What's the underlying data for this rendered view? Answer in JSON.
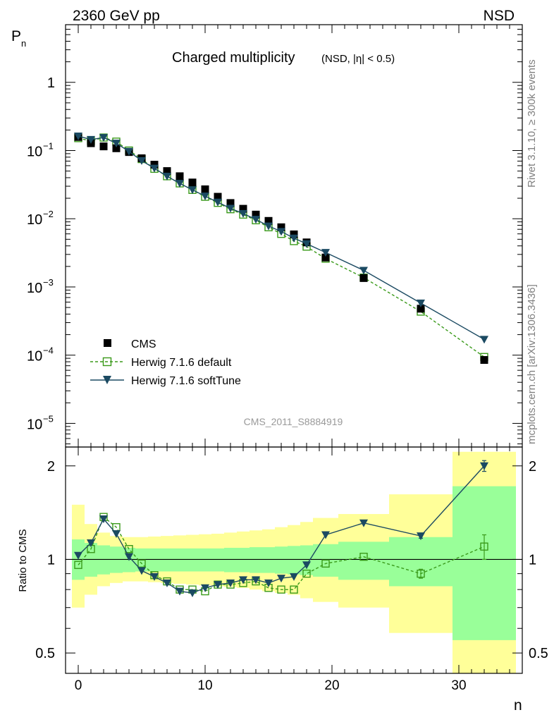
{
  "header": {
    "energy_label": "2360 GeV pp",
    "process_label": "NSD"
  },
  "side": {
    "rivet": "Rivet 3.1.10, ≥ 300k events",
    "mcplots": "mcplots.cern.ch [arXiv:1306.3436]"
  },
  "colors": {
    "cms": "#000000",
    "default": "#3a9a1a",
    "softtune": "#1b4a62",
    "band_inner": "#99ff99",
    "band_outer": "#ffff99",
    "ref_line": "#000000"
  },
  "chart_data": [
    {
      "type": "scatter",
      "title": "Charged multiplicity",
      "subtitle": "(NSD, |η| < 0.5)",
      "ylabel": "P",
      "ylabel_sub": "n",
      "xlabel": "n",
      "yscale": "log",
      "xlim": [
        -1,
        35
      ],
      "ylim": [
        4.5e-06,
        7
      ],
      "y_ticks": [
        {
          "value": 1,
          "base": "1",
          "exp": ""
        },
        {
          "value": 0.1,
          "base": "10",
          "exp": "−1"
        },
        {
          "value": 0.01,
          "base": "10",
          "exp": "−2"
        },
        {
          "value": 0.001,
          "base": "10",
          "exp": "−3"
        },
        {
          "value": 0.0001,
          "base": "10",
          "exp": "−4"
        },
        {
          "value": 1e-05,
          "base": "10",
          "exp": "−5"
        }
      ],
      "watermark": "CMS_2011_S8884919",
      "legend": {
        "placement": "bottom-left",
        "entries": [
          "CMS",
          "Herwig 7.1.6 default",
          "Herwig 7.1.6 softTune"
        ]
      },
      "series": [
        {
          "name": "CMS",
          "marker": "filled-square",
          "x": [
            0,
            1,
            2,
            3,
            4,
            5,
            6,
            7,
            8,
            9,
            10,
            11,
            12,
            13,
            14,
            15,
            16,
            17,
            18,
            19.5,
            22.5,
            27,
            32
          ],
          "y": [
            0.158,
            0.128,
            0.115,
            0.108,
            0.095,
            0.077,
            0.062,
            0.05,
            0.042,
            0.034,
            0.027,
            0.021,
            0.017,
            0.014,
            0.0115,
            0.0093,
            0.0075,
            0.0059,
            0.0045,
            0.0027,
            0.00135,
            0.00048,
            8.5e-05
          ]
        },
        {
          "name": "Herwig 7.1.6 default",
          "marker": "open-square",
          "line": "dashed",
          "x": [
            0,
            1,
            2,
            3,
            4,
            5,
            6,
            7,
            8,
            9,
            10,
            11,
            12,
            13,
            14,
            15,
            16,
            17,
            18,
            19.5,
            22.5,
            27,
            32
          ],
          "y": [
            0.152,
            0.138,
            0.155,
            0.135,
            0.1,
            0.075,
            0.054,
            0.042,
            0.033,
            0.0265,
            0.021,
            0.0171,
            0.0138,
            0.0115,
            0.0095,
            0.0075,
            0.006,
            0.0047,
            0.0039,
            0.0026,
            0.00137,
            0.000435,
            9.4e-05
          ]
        },
        {
          "name": "Herwig 7.1.6 softTune",
          "marker": "filled-triangle-down",
          "line": "solid",
          "x": [
            0,
            1,
            2,
            3,
            4,
            5,
            6,
            7,
            8,
            9,
            10,
            11,
            12,
            13,
            14,
            15,
            16,
            17,
            18,
            19.5,
            22.5,
            27,
            32
          ],
          "y": [
            0.163,
            0.145,
            0.155,
            0.128,
            0.097,
            0.071,
            0.055,
            0.042,
            0.033,
            0.0265,
            0.0215,
            0.0175,
            0.0142,
            0.0119,
            0.0098,
            0.0078,
            0.0065,
            0.0052,
            0.0043,
            0.0032,
            0.00175,
            0.00058,
            0.00017
          ]
        }
      ]
    },
    {
      "type": "scatter",
      "ylabel": "Ratio to CMS",
      "xlabel": "n",
      "xlim": [
        -1,
        35
      ],
      "ylim": [
        0.43,
        2.3
      ],
      "y_ticks": [
        0.5,
        1,
        2
      ],
      "y_tick_labels": [
        "0.5",
        "1",
        "2"
      ],
      "x_ticks": [
        0,
        10,
        20,
        30
      ],
      "x_tick_labels": [
        "0",
        "10",
        "20",
        "30"
      ],
      "reference": 1,
      "bands": {
        "edges": [
          -0.5,
          0.5,
          1.5,
          2.5,
          3.5,
          4.5,
          5.5,
          6.5,
          7.5,
          8.5,
          9.5,
          10.5,
          11.5,
          12.5,
          13.5,
          14.5,
          15.5,
          16.5,
          17.5,
          18.5,
          20.5,
          24.5,
          29.5,
          34.5
        ],
        "inner_low": [
          0.86,
          0.88,
          0.895,
          0.905,
          0.91,
          0.915,
          0.915,
          0.915,
          0.915,
          0.915,
          0.915,
          0.915,
          0.91,
          0.91,
          0.905,
          0.905,
          0.9,
          0.895,
          0.89,
          0.88,
          0.86,
          0.82,
          0.55
        ],
        "inner_high": [
          1.16,
          1.13,
          1.11,
          1.1,
          1.09,
          1.085,
          1.085,
          1.085,
          1.085,
          1.085,
          1.085,
          1.085,
          1.09,
          1.09,
          1.095,
          1.095,
          1.1,
          1.105,
          1.11,
          1.12,
          1.14,
          1.18,
          1.72
        ],
        "outer_low": [
          0.7,
          0.77,
          0.82,
          0.84,
          0.85,
          0.85,
          0.845,
          0.84,
          0.835,
          0.83,
          0.825,
          0.82,
          0.815,
          0.81,
          0.8,
          0.79,
          0.78,
          0.77,
          0.75,
          0.73,
          0.7,
          0.58,
          0.3
        ],
        "outer_high": [
          1.5,
          1.3,
          1.22,
          1.19,
          1.18,
          1.18,
          1.185,
          1.19,
          1.195,
          1.2,
          1.205,
          1.21,
          1.22,
          1.23,
          1.24,
          1.25,
          1.27,
          1.29,
          1.32,
          1.36,
          1.4,
          1.62,
          2.22
        ]
      },
      "series": [
        {
          "name": "Herwig 7.1.6 default",
          "marker": "open-square",
          "line": "dashed",
          "x": [
            0,
            1,
            2,
            3,
            4,
            5,
            6,
            7,
            8,
            9,
            10,
            11,
            12,
            13,
            14,
            15,
            16,
            17,
            18,
            19.5,
            22.5,
            27,
            32
          ],
          "y": [
            0.96,
            1.08,
            1.37,
            1.27,
            1.08,
            0.97,
            0.89,
            0.85,
            0.8,
            0.8,
            0.79,
            0.83,
            0.83,
            0.84,
            0.85,
            0.81,
            0.8,
            0.8,
            0.9,
            0.97,
            1.02,
            0.9,
            1.1
          ],
          "err": [
            0,
            0,
            0,
            0,
            0,
            0,
            0,
            0,
            0,
            0,
            0,
            0,
            0,
            0,
            0,
            0,
            0,
            0,
            0,
            0,
            0,
            0.03,
            0.1
          ]
        },
        {
          "name": "Herwig 7.1.6 softTune",
          "marker": "filled-triangle-down",
          "line": "solid",
          "x": [
            0,
            1,
            2,
            3,
            4,
            5,
            6,
            7,
            8,
            9,
            10,
            11,
            12,
            13,
            14,
            15,
            16,
            17,
            18,
            19.5,
            22.5,
            27,
            32
          ],
          "y": [
            1.03,
            1.13,
            1.35,
            1.21,
            1.02,
            0.92,
            0.88,
            0.84,
            0.79,
            0.78,
            0.81,
            0.83,
            0.84,
            0.86,
            0.86,
            0.84,
            0.87,
            0.88,
            0.96,
            1.2,
            1.31,
            1.19,
            2.0
          ],
          "err": [
            0,
            0,
            0,
            0,
            0,
            0,
            0,
            0,
            0,
            0,
            0,
            0,
            0,
            0,
            0,
            0,
            0,
            0,
            0,
            0,
            0,
            0.02,
            0.08
          ]
        }
      ]
    }
  ]
}
